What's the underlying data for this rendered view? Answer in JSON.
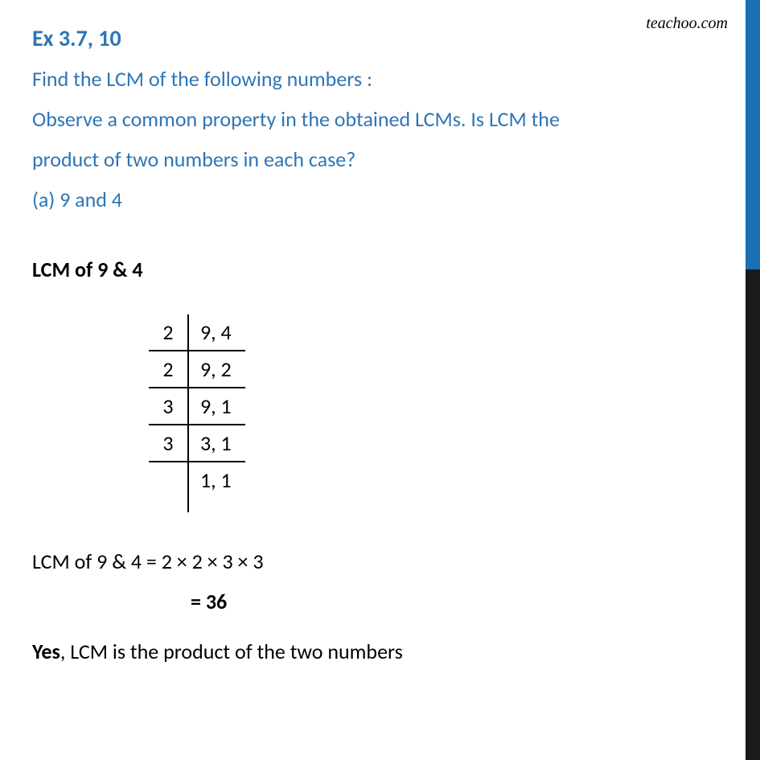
{
  "watermark": "teachoo.com",
  "exTitle": "Ex 3.7, 10",
  "questionLine1": "Find the LCM of the following numbers :",
  "questionLine2": "Observe a common property in the obtained LCMs. Is LCM the",
  "questionLine3": "product of two numbers in each case?",
  "questionLine4": "(a) 9 and 4",
  "sectionHeading": "LCM of 9 & 4",
  "divisionTable": {
    "rows": [
      {
        "left": "2",
        "right": "9, 4"
      },
      {
        "left": "2",
        "right": "9, 2"
      },
      {
        "left": "3",
        "right": "9, 1"
      },
      {
        "left": "3",
        "right": "3, 1"
      },
      {
        "left": "",
        "right": "1, 1"
      }
    ]
  },
  "answerLine": "LCM of 9 & 4 = 2 × 2 × 3 × 3",
  "answerValue": "= 36",
  "conclusion": {
    "yes": "Yes",
    "rest": ", LCM is the product of the two numbers"
  },
  "colors": {
    "blue": "#2e75b6",
    "black": "#000000",
    "barBlue": "#1a6fb5",
    "barDark": "#1a1a1a",
    "background": "#ffffff"
  },
  "fonts": {
    "main": "Segoe UI, Calibri, Arial, sans-serif",
    "watermark": "Comic Sans MS, cursive",
    "titleSize": 28,
    "bodySize": 26,
    "watermarkSize": 20
  }
}
